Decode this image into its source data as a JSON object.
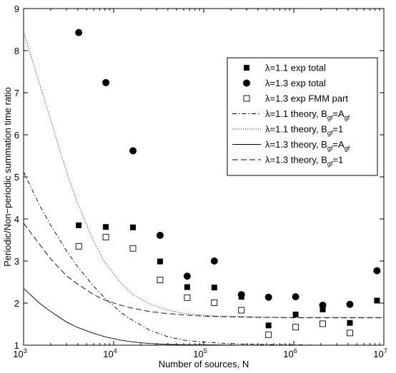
{
  "chart_data": {
    "type": "scatter",
    "xlabel": "Number of sources, N",
    "ylabel": "Periodic/Non−periodic summation time ratio",
    "x_scale": "log",
    "xlim": [
      1000,
      10000000
    ],
    "ylim": [
      1,
      9
    ],
    "x_ticks": [
      {
        "value": 1000,
        "base": "10",
        "exp": "3"
      },
      {
        "value": 10000,
        "base": "10",
        "exp": "4"
      },
      {
        "value": 100000,
        "base": "10",
        "exp": "5"
      },
      {
        "value": 1000000,
        "base": "10",
        "exp": "6"
      },
      {
        "value": 10000000,
        "base": "10",
        "exp": "7"
      }
    ],
    "y_ticks": [
      "1",
      "2",
      "3",
      "4",
      "5",
      "6",
      "7",
      "8",
      "9"
    ],
    "grid": false,
    "legend_position": "top-right",
    "series": [
      {
        "name": "λ=1.1 exp total",
        "legend": {
          "pre": "λ=1.1 exp total"
        },
        "style": "marker-square-filled",
        "x": [
          4096,
          8192,
          16384,
          32768,
          65536,
          131072,
          262144,
          524288,
          1048576,
          2097152,
          4194304,
          8388608
        ],
        "y": [
          3.85,
          3.81,
          3.8,
          2.99,
          2.38,
          2.37,
          2.15,
          1.47,
          1.73,
          1.85,
          1.53,
          2.06
        ]
      },
      {
        "name": "λ=1.3 exp total",
        "legend": {
          "pre": "λ=1.3 exp total"
        },
        "style": "marker-circle-filled",
        "x": [
          4096,
          8192,
          16384,
          32768,
          65536,
          131072,
          262144,
          524288,
          1048576,
          2097152,
          4194304,
          8388608
        ],
        "y": [
          8.43,
          7.24,
          5.62,
          3.61,
          2.64,
          3.0,
          2.2,
          2.14,
          2.15,
          1.95,
          1.97,
          2.77
        ]
      },
      {
        "name": "λ=1.3 exp FMM part",
        "legend": {
          "pre": "λ=1.3 exp FMM part"
        },
        "style": "marker-square-open",
        "x": [
          4096,
          8192,
          16384,
          32768,
          65536,
          131072,
          262144,
          524288,
          1048576,
          2097152,
          4194304
        ],
        "y": [
          3.35,
          3.57,
          3.3,
          2.55,
          2.13,
          2.01,
          1.83,
          1.25,
          1.43,
          1.51,
          1.29
        ]
      },
      {
        "name": "λ=1.1 theory, B_gf=A_gf",
        "legend": {
          "pre": "λ=1.1 theory, B",
          "sub1": "gf",
          "mid": "=A",
          "sub2": "gf"
        },
        "style": "line-dashdot",
        "x": [
          1000,
          1500,
          2000,
          3000,
          4000,
          6000,
          8000,
          12000,
          16000,
          25000,
          40000,
          60000,
          100000,
          150000,
          250000,
          400000,
          700000,
          1000000,
          2000000,
          4000000,
          10000000
        ],
        "y": [
          5.12,
          4.33,
          3.85,
          3.24,
          2.86,
          2.4,
          2.12,
          1.78,
          1.6,
          1.36,
          1.2,
          1.12,
          1.07,
          1.05,
          1.03,
          1.02,
          1.01,
          1.01,
          1.0,
          1.0,
          1.0
        ]
      },
      {
        "name": "λ=1.1 theory, B_gf=1",
        "legend": {
          "pre": "λ=1.1 theory, B",
          "sub1": "gf",
          "mid": "=1",
          "sub2": ""
        },
        "style": "line-dotted",
        "x": [
          1000,
          1500,
          2000,
          3000,
          4000,
          6000,
          8000,
          12000,
          16000,
          25000,
          40000,
          60000,
          100000,
          150000,
          250000,
          400000,
          700000,
          1000000,
          2000000,
          4000000,
          10000000
        ],
        "y": [
          8.45,
          7.22,
          6.35,
          5.12,
          4.36,
          3.46,
          2.97,
          2.48,
          2.22,
          1.98,
          1.83,
          1.76,
          1.71,
          1.69,
          1.68,
          1.67,
          1.66,
          1.66,
          1.66,
          1.66,
          1.66
        ]
      },
      {
        "name": "λ=1.3 theory, B_gf=A_gf",
        "legend": {
          "pre": "λ=1.3 theory, B",
          "sub1": "gf",
          "mid": "=A",
          "sub2": "gf"
        },
        "style": "line-solid",
        "x": [
          1000,
          1500,
          2000,
          3000,
          4000,
          6000,
          8000,
          12000,
          16000,
          25000,
          40000,
          60000,
          100000,
          250000,
          1000000,
          10000000
        ],
        "y": [
          2.35,
          2.0,
          1.8,
          1.55,
          1.42,
          1.28,
          1.2,
          1.12,
          1.08,
          1.04,
          1.02,
          1.01,
          1.01,
          1.0,
          1.0,
          1.0
        ]
      },
      {
        "name": "λ=1.3 theory, B_gf=1",
        "legend": {
          "pre": "λ=1.3 theory, B",
          "sub1": "gf",
          "mid": "=1",
          "sub2": ""
        },
        "style": "line-dashed",
        "x": [
          1000,
          1500,
          2000,
          3000,
          4000,
          6000,
          8000,
          12000,
          16000,
          25000,
          40000,
          60000,
          100000,
          150000,
          250000,
          400000,
          700000,
          1000000,
          2000000,
          4000000,
          10000000
        ],
        "y": [
          3.9,
          3.4,
          3.05,
          2.65,
          2.45,
          2.2,
          2.07,
          1.95,
          1.88,
          1.8,
          1.75,
          1.72,
          1.69,
          1.68,
          1.67,
          1.66,
          1.66,
          1.65,
          1.65,
          1.65,
          1.65
        ]
      }
    ]
  }
}
